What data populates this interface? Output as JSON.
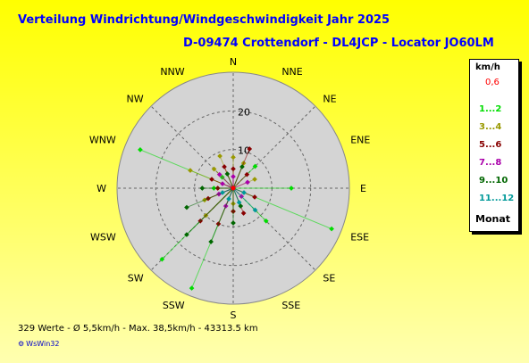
{
  "title": "Verteilung Windrichtung/Windgeschwindigkeit  Jahr 2025",
  "subtitle": "D-09474 Crottendorf - DL4JCP - Locator JO60LM",
  "footer": "329 Werte   -   Ø 5,5km/h  -  Max. 38,5km/h  -   43313.5 km",
  "brand": "WsWin32",
  "legend": {
    "title": "km/h",
    "calm": "0,6",
    "footer": "Monat",
    "items": [
      {
        "label": "1...2",
        "color": "#00dd00"
      },
      {
        "label": "3...4",
        "color": "#999900"
      },
      {
        "label": "5...6",
        "color": "#880000"
      },
      {
        "label": "7...8",
        "color": "#aa00aa"
      },
      {
        "label": "9...10",
        "color": "#006600"
      },
      {
        "label": "11...12",
        "color": "#009999"
      }
    ]
  },
  "colors": {
    "background_top": "#ffff00",
    "background_bottom": "#ffffb0",
    "title": "#0000ff",
    "plot_disc": "#d4d4d4",
    "grid": "#666666",
    "calm": "#ff0000"
  },
  "chart_data": {
    "type": "scatter",
    "projection": "polar",
    "title": "Verteilung Windrichtung/Windgeschwindigkeit  Jahr 2025",
    "subtitle": "D-09474 Crottendorf - DL4JCP - Locator JO60LM",
    "directions": [
      "N",
      "NNE",
      "NE",
      "ENE",
      "E",
      "ESE",
      "SE",
      "SSE",
      "S",
      "SSW",
      "SW",
      "WSW",
      "W",
      "WNW",
      "NW",
      "NNW"
    ],
    "radial_ticks": [
      10,
      20
    ],
    "rmax": 30,
    "grid": true,
    "legend_position": "right",
    "legend_title": "km/h",
    "calm_value": 0.6,
    "series": [
      {
        "name": "1...2",
        "color": "#00dd00",
        "points": [
          {
            "dir_deg": 292.5,
            "speed": 26
          },
          {
            "dir_deg": 112.5,
            "speed": 27.5
          },
          {
            "dir_deg": 202.5,
            "speed": 28
          },
          {
            "dir_deg": 225,
            "speed": 26
          },
          {
            "dir_deg": 90,
            "speed": 15
          },
          {
            "dir_deg": 135,
            "speed": 12
          },
          {
            "dir_deg": 45,
            "speed": 8
          },
          {
            "dir_deg": 270,
            "speed": 5
          },
          {
            "dir_deg": 315,
            "speed": 4
          },
          {
            "dir_deg": 180,
            "speed": 6
          }
        ]
      },
      {
        "name": "3...4",
        "color": "#999900",
        "points": [
          {
            "dir_deg": 0,
            "speed": 8
          },
          {
            "dir_deg": 22.5,
            "speed": 7
          },
          {
            "dir_deg": 337.5,
            "speed": 9
          },
          {
            "dir_deg": 292.5,
            "speed": 12
          },
          {
            "dir_deg": 315,
            "speed": 7
          },
          {
            "dir_deg": 67.5,
            "speed": 6
          },
          {
            "dir_deg": 180,
            "speed": 4
          },
          {
            "dir_deg": 247.5,
            "speed": 8
          },
          {
            "dir_deg": 225,
            "speed": 10
          }
        ]
      },
      {
        "name": "5...6",
        "color": "#880000",
        "points": [
          {
            "dir_deg": 0,
            "speed": 5
          },
          {
            "dir_deg": 22.5,
            "speed": 11
          },
          {
            "dir_deg": 337.5,
            "speed": 6
          },
          {
            "dir_deg": 45,
            "speed": 5
          },
          {
            "dir_deg": 112.5,
            "speed": 6
          },
          {
            "dir_deg": 157.5,
            "speed": 7
          },
          {
            "dir_deg": 180,
            "speed": 6
          },
          {
            "dir_deg": 202.5,
            "speed": 10
          },
          {
            "dir_deg": 225,
            "speed": 12
          },
          {
            "dir_deg": 247.5,
            "speed": 7
          },
          {
            "dir_deg": 270,
            "speed": 4
          },
          {
            "dir_deg": 292.5,
            "speed": 6
          }
        ]
      },
      {
        "name": "7...8",
        "color": "#aa00aa",
        "points": [
          {
            "dir_deg": 0,
            "speed": 3
          },
          {
            "dir_deg": 67.5,
            "speed": 4
          },
          {
            "dir_deg": 135,
            "speed": 3
          },
          {
            "dir_deg": 202.5,
            "speed": 5
          },
          {
            "dir_deg": 247.5,
            "speed": 4
          },
          {
            "dir_deg": 292.5,
            "speed": 3
          },
          {
            "dir_deg": 315,
            "speed": 5
          }
        ]
      },
      {
        "name": "9...10",
        "color": "#006600",
        "points": [
          {
            "dir_deg": 202.5,
            "speed": 15
          },
          {
            "dir_deg": 225,
            "speed": 17
          },
          {
            "dir_deg": 247.5,
            "speed": 13
          },
          {
            "dir_deg": 180,
            "speed": 9
          },
          {
            "dir_deg": 157.5,
            "speed": 5
          },
          {
            "dir_deg": 22.5,
            "speed": 6
          },
          {
            "dir_deg": 270,
            "speed": 8
          },
          {
            "dir_deg": 337.5,
            "speed": 4
          }
        ]
      },
      {
        "name": "11...12",
        "color": "#009999",
        "points": [
          {
            "dir_deg": 135,
            "speed": 8
          },
          {
            "dir_deg": 157.5,
            "speed": 4
          },
          {
            "dir_deg": 202.5,
            "speed": 3
          },
          {
            "dir_deg": 247.5,
            "speed": 3
          },
          {
            "dir_deg": 112.5,
            "speed": 3
          }
        ]
      }
    ]
  }
}
